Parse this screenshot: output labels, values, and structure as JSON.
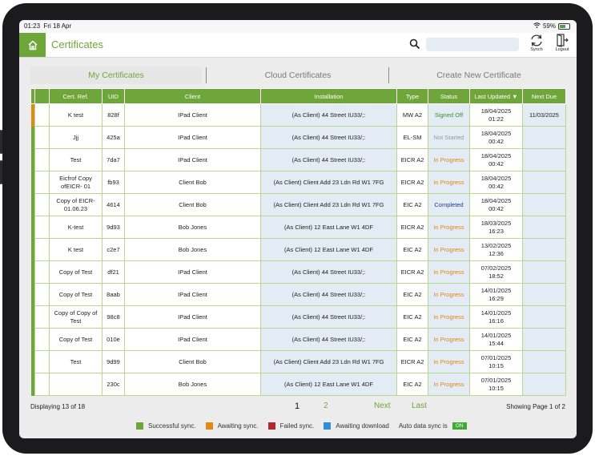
{
  "status_bar": {
    "time": "01:23",
    "date": "Fri 18 Apr",
    "battery": "59%"
  },
  "header": {
    "title": "Certificates",
    "synch_label": "Synch",
    "logout_label": "Logout",
    "search_value": ""
  },
  "tabs": [
    {
      "label": "My Certificates",
      "active": true
    },
    {
      "label": "Cloud Certificates",
      "active": false
    },
    {
      "label": "Create New Certificate",
      "active": false
    }
  ],
  "table": {
    "columns": [
      "Cert. Ref.",
      "UID",
      "Client",
      "Installation",
      "Type",
      "Status",
      "Last Updated ▼",
      "Next Due"
    ],
    "rows": [
      {
        "ref": "K test",
        "uid": "828f",
        "client": "IPad Client",
        "installation": "(As Client) 44 Street IU33/;:",
        "type": "MW A2",
        "status": "Signed Off",
        "status_class": "green",
        "updated_date": "18/04/2025",
        "updated_time": "01:22",
        "next_due": "11/03/2025",
        "sync": "awaiting"
      },
      {
        "ref": "Jjj",
        "uid": "425a",
        "client": "IPad Client",
        "installation": "(As Client) 44 Street IU33/;:",
        "type": "EL-SM",
        "status": "Not Started",
        "status_class": "grey",
        "updated_date": "18/04/2025",
        "updated_time": "00:42",
        "next_due": "",
        "sync": "success"
      },
      {
        "ref": "Test",
        "uid": "7da7",
        "client": "IPad Client",
        "installation": "(As Client) 44 Street IU33/;:",
        "type": "EICR A2",
        "status": "In Progress",
        "status_class": "orange",
        "updated_date": "18/04/2025",
        "updated_time": "00:42",
        "next_due": "",
        "sync": "success"
      },
      {
        "ref": "Eicfrof Copy ofEICR- 01",
        "uid": "fb93",
        "client": "Client Bob",
        "installation": "(As Client) Client Add 23 Ldn Rd W1 7FG",
        "type": "EICR A2",
        "status": "In Progress",
        "status_class": "orange",
        "updated_date": "18/04/2025",
        "updated_time": "00:42",
        "next_due": "",
        "sync": "success"
      },
      {
        "ref": "Copy of EICR- 01.06.23",
        "uid": "4614",
        "client": "Client Bob",
        "installation": "(As Client) Client Add 23 Ldn Rd W1 7FG",
        "type": "EIC A2",
        "status": "Completed",
        "status_class": "blue",
        "updated_date": "18/04/2025",
        "updated_time": "00:42",
        "next_due": "",
        "sync": "success"
      },
      {
        "ref": "K-test",
        "uid": "9d93",
        "client": "Bob Jones",
        "installation": "(As Client) 12 East Lane W1 4DF",
        "type": "EICR A2",
        "status": "In Progress",
        "status_class": "orange",
        "updated_date": "18/03/2025",
        "updated_time": "16:23",
        "next_due": "",
        "sync": "success"
      },
      {
        "ref": "K test",
        "uid": "c2e7",
        "client": "Bob Jones",
        "installation": "(As Client) 12 East Lane W1 4DF",
        "type": "EIC A2",
        "status": "In Progress",
        "status_class": "orange",
        "updated_date": "13/02/2025",
        "updated_time": "12:36",
        "next_due": "",
        "sync": "success"
      },
      {
        "ref": "Copy of Test",
        "uid": "df21",
        "client": "IPad Client",
        "installation": "(As Client) 44 Street IU33/;:",
        "type": "EICR A2",
        "status": "In Progress",
        "status_class": "orange",
        "updated_date": "07/02/2025",
        "updated_time": "18:52",
        "next_due": "",
        "sync": "success"
      },
      {
        "ref": "Copy of Test",
        "uid": "8aab",
        "client": "IPad Client",
        "installation": "(As Client) 44 Street IU33/;:",
        "type": "EIC A2",
        "status": "In Progress",
        "status_class": "orange",
        "updated_date": "14/01/2025",
        "updated_time": "16:29",
        "next_due": "",
        "sync": "success"
      },
      {
        "ref": "Copy of Copy of Test",
        "uid": "98c8",
        "client": "IPad Client",
        "installation": "(As Client) 44 Street IU33/;:",
        "type": "EIC A2",
        "status": "In Progress",
        "status_class": "orange",
        "updated_date": "14/01/2025",
        "updated_time": "16:16",
        "next_due": "",
        "sync": "success"
      },
      {
        "ref": "Copy of Test",
        "uid": "010e",
        "client": "IPad Client",
        "installation": "(As Client) 44 Street IU33/;:",
        "type": "EIC A2",
        "status": "In Progress",
        "status_class": "orange",
        "updated_date": "14/01/2025",
        "updated_time": "15:44",
        "next_due": "",
        "sync": "success"
      },
      {
        "ref": "Test",
        "uid": "9d99",
        "client": "Client Bob",
        "installation": "(As Client) Client Add 23 Ldn Rd W1 7FG",
        "type": "EICR A2",
        "status": "In Progress",
        "status_class": "orange",
        "updated_date": "07/01/2025",
        "updated_time": "10:15",
        "next_due": "",
        "sync": "success"
      },
      {
        "ref": "",
        "uid": "230c",
        "client": "Bob Jones",
        "installation": "(As Client) 12 East Lane W1 4DF",
        "type": "EIC A2",
        "status": "In Progress",
        "status_class": "orange",
        "updated_date": "07/01/2025",
        "updated_time": "10:15",
        "next_due": "",
        "sync": "success"
      }
    ]
  },
  "footer": {
    "displaying": "Displaying 13 of 18",
    "pages": [
      "1",
      "2"
    ],
    "current_page": "1",
    "next_label": "Next",
    "last_label": "Last",
    "showing": "Showing Page 1 of 2"
  },
  "legend": {
    "items": [
      {
        "label": "Successful sync.",
        "color": "#6fa63a"
      },
      {
        "label": "Awaiting sync.",
        "color": "#e08a12"
      },
      {
        "label": "Failed sync.",
        "color": "#b02a2a"
      },
      {
        "label": "Awaiting download",
        "color": "#2f8fd6"
      }
    ],
    "auto_sync_label": "Auto data sync is",
    "auto_sync_state": "ON"
  },
  "colors": {
    "accent": "#6fa63a",
    "awaiting": "#e08a12",
    "failed": "#b02a2a",
    "download": "#2f8fd6",
    "in_progress": "#e08a12",
    "completed": "#1d3e8f",
    "signed_off": "#3e8e2e"
  }
}
